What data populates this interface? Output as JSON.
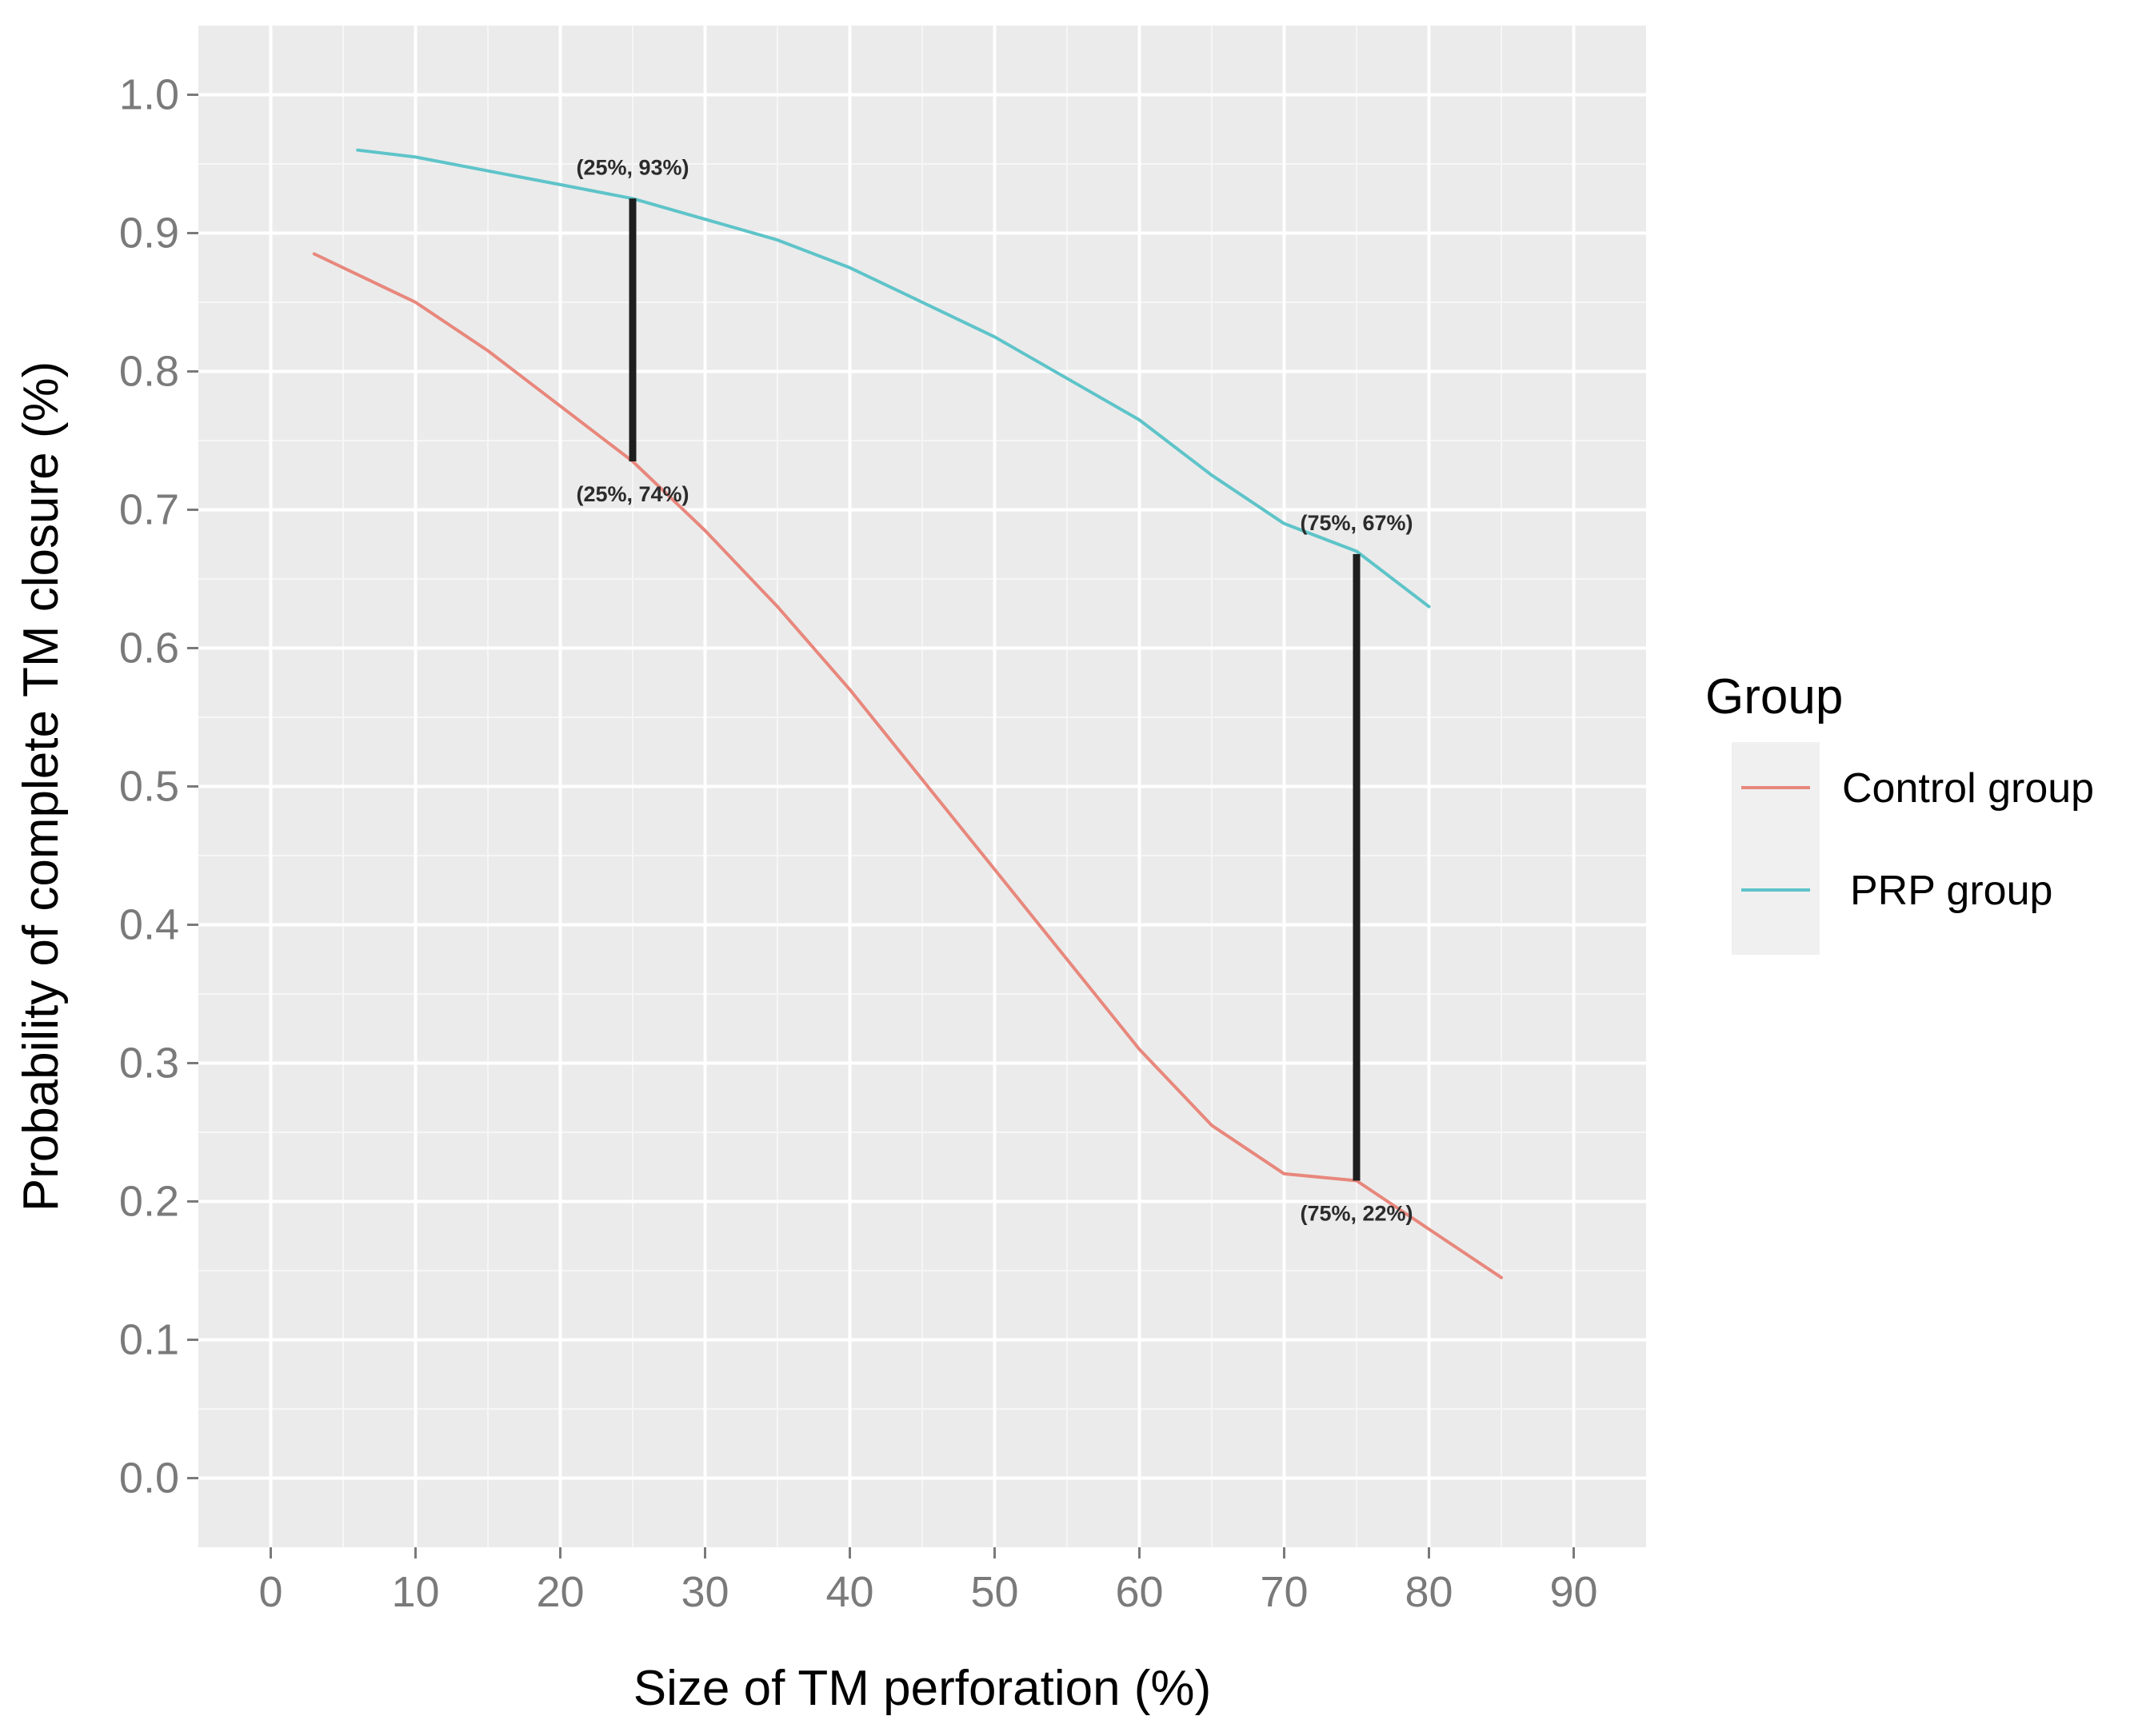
{
  "chart_data": {
    "type": "line",
    "xlabel": "Size of TM perforation (%)",
    "ylabel": "Probability of complete TM closure (%)",
    "xlim": [
      -5,
      95
    ],
    "ylim": [
      -0.05,
      1.05
    ],
    "xticks": [
      0,
      10,
      20,
      30,
      40,
      50,
      60,
      70,
      80,
      90
    ],
    "xtick_labels": [
      "0",
      "10",
      "20",
      "30",
      "40",
      "50",
      "60",
      "70",
      "80",
      "90"
    ],
    "yticks": [
      0.0,
      0.1,
      0.2,
      0.3,
      0.4,
      0.5,
      0.6,
      0.7,
      0.8,
      0.9,
      1.0
    ],
    "ytick_labels": [
      "0.0",
      "0.1",
      "0.2",
      "0.3",
      "0.4",
      "0.5",
      "0.6",
      "0.7",
      "0.8",
      "0.9",
      "1.0"
    ],
    "grid": true,
    "panel_background": "#ebebeb",
    "legend": {
      "title": "Group",
      "placement": "right",
      "entries": [
        "Control group",
        "PRP group"
      ]
    },
    "series": [
      {
        "name": "Control group",
        "color": "#e8877c",
        "x": [
          3,
          10,
          15,
          20,
          25,
          30,
          35,
          40,
          45,
          50,
          55,
          60,
          65,
          70,
          75,
          80,
          85
        ],
        "y": [
          0.885,
          0.85,
          0.815,
          0.775,
          0.735,
          0.685,
          0.63,
          0.57,
          0.505,
          0.44,
          0.375,
          0.31,
          0.255,
          0.22,
          0.215,
          0.18,
          0.145
        ]
      },
      {
        "name": "PRP group",
        "color": "#5ec4c9",
        "x": [
          6,
          10,
          15,
          20,
          25,
          30,
          35,
          40,
          45,
          50,
          55,
          60,
          65,
          70,
          75,
          80
        ],
        "y": [
          0.96,
          0.955,
          0.945,
          0.935,
          0.925,
          0.91,
          0.895,
          0.875,
          0.85,
          0.825,
          0.795,
          0.765,
          0.725,
          0.69,
          0.67,
          0.63
        ]
      }
    ],
    "annotations": [
      {
        "x": 25,
        "y_top": 0.925,
        "y_bottom": 0.735,
        "top_label": "(25%, 93%)",
        "bottom_label": "(25%, 74%)"
      },
      {
        "x": 75,
        "y_top": 0.668,
        "y_bottom": 0.215,
        "top_label": "(75%, 67%)",
        "bottom_label": "(75%, 22%)"
      }
    ]
  }
}
